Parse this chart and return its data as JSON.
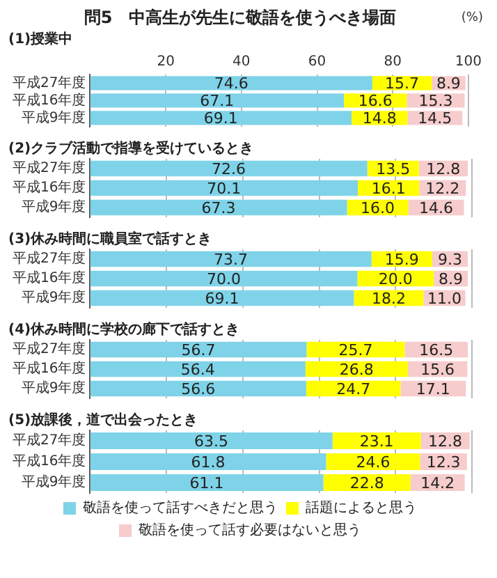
{
  "chart_data": [
    {
      "type": "bar",
      "orientation": "horizontal",
      "stacked": true,
      "title": "問5　中高生が先生に敬語を使うべき場面",
      "subtitle": "(1)授業中",
      "annotations": [
        "(%)"
      ],
      "categories": [
        "平成27年度",
        "平成16年度",
        "平成9年度"
      ],
      "xlim": [
        0,
        100
      ],
      "xticks": [
        20,
        40,
        60,
        80,
        100
      ],
      "grid": "x",
      "legend": false,
      "data_labels": true,
      "series": [
        {
          "color": "#7fd3e8",
          "values": [
            74.6,
            67.1,
            69.1
          ]
        },
        {
          "color": "#ffff00",
          "values": [
            15.7,
            16.6,
            14.8
          ]
        },
        {
          "color": "#f6cccc",
          "values": [
            8.9,
            15.3,
            14.5
          ]
        }
      ]
    },
    {
      "type": "bar",
      "orientation": "horizontal",
      "stacked": true,
      "subtitle": "(2)クラブ活動で指導を受けているとき",
      "categories": [
        "平成27年度",
        "平成16年度",
        "平成9年度"
      ],
      "xlim": [
        0,
        100
      ],
      "xticks": [
        20,
        40,
        60,
        80,
        100
      ],
      "grid": "x",
      "tick_labels": "y",
      "legend": false,
      "data_labels": true,
      "series": [
        {
          "color": "#7fd3e8",
          "values": [
            72.6,
            70.1,
            67.3
          ]
        },
        {
          "color": "#ffff00",
          "values": [
            13.5,
            16.1,
            16.0
          ],
          "value_labels": [
            "13.5",
            "16.1",
            "16.0"
          ]
        },
        {
          "color": "#f6cccc",
          "values": [
            12.8,
            12.2,
            14.6
          ]
        }
      ]
    },
    {
      "type": "bar",
      "orientation": "horizontal",
      "stacked": true,
      "subtitle": "(3)休み時間に職員室で話すとき",
      "categories": [
        "平成27年度",
        "平成16年度",
        "平成9年度"
      ],
      "xlim": [
        0,
        100
      ],
      "xticks": [
        20,
        40,
        60,
        80,
        100
      ],
      "grid": "x",
      "tick_labels": "y",
      "legend": false,
      "data_labels": true,
      "series": [
        {
          "color": "#7fd3e8",
          "values": [
            73.7,
            70.0,
            69.1
          ],
          "value_labels": [
            "73.7",
            "70.0",
            "69.1"
          ]
        },
        {
          "color": "#ffff00",
          "values": [
            15.9,
            20.0,
            18.2
          ],
          "value_labels": [
            "15.9",
            "20.0",
            "18.2"
          ]
        },
        {
          "color": "#f6cccc",
          "values": [
            9.3,
            8.9,
            11.0
          ],
          "value_labels": [
            "9.3",
            "8.9",
            "11.0"
          ]
        }
      ]
    },
    {
      "type": "bar",
      "orientation": "horizontal",
      "stacked": true,
      "subtitle": "(4)休み時間に学校の廊下で話すとき",
      "categories": [
        "平成27年度",
        "平成16年度",
        "平成9年度"
      ],
      "xlim": [
        0,
        100
      ],
      "xticks": [
        20,
        40,
        60,
        80,
        100
      ],
      "grid": "x",
      "tick_labels": "y",
      "legend": false,
      "data_labels": true,
      "series": [
        {
          "color": "#7fd3e8",
          "values": [
            56.7,
            56.4,
            56.6
          ]
        },
        {
          "color": "#ffff00",
          "values": [
            25.7,
            26.8,
            24.7
          ]
        },
        {
          "color": "#f6cccc",
          "values": [
            16.5,
            15.6,
            17.1
          ]
        }
      ]
    },
    {
      "type": "bar",
      "orientation": "horizontal",
      "stacked": true,
      "subtitle": "(5)放課後，道で出会ったとき",
      "categories": [
        "平成27年度",
        "平成16年度",
        "平成9年度"
      ],
      "xlim": [
        0,
        100
      ],
      "xticks": [
        20,
        40,
        60,
        80,
        100
      ],
      "grid": "x",
      "tick_labels": "y",
      "legend": "bottom",
      "data_labels": true,
      "series": [
        {
          "name": "敬語を使って話すべきだと思う",
          "color": "#7fd3e8",
          "values": [
            63.5,
            61.8,
            61.1
          ]
        },
        {
          "name": "話題によると思う",
          "color": "#ffff00",
          "values": [
            23.1,
            24.6,
            22.8
          ]
        },
        {
          "name": "敬語を使って話す必要はないと思う",
          "color": "#f6cccc",
          "values": [
            12.8,
            12.3,
            14.2
          ]
        }
      ]
    }
  ]
}
